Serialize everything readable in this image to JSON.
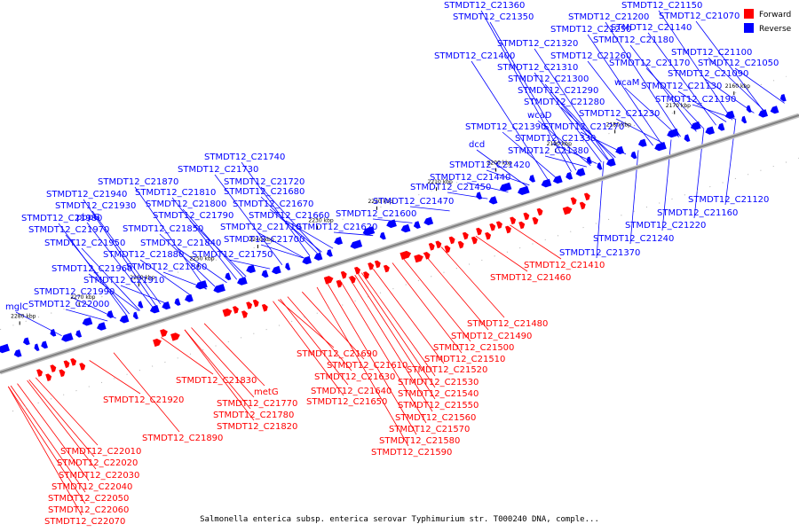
{
  "caption": "Salmonella enterica subsp. enterica serovar Typhimurium str. T000240 DNA, comple...",
  "legend": [
    {
      "label": "Forward",
      "color": "#ff0000"
    },
    {
      "label": "Reverse",
      "color": "#0000ff"
    }
  ],
  "colors": {
    "forward": "#ff0000",
    "reverse": "#0000ff",
    "axis": "#808080"
  },
  "ticks": [
    "2160 kbp",
    "2170 kbp",
    "2180 kbp",
    "2190 kbp",
    "2200 kbp",
    "2210 kbp",
    "2220 kbp",
    "2230 kbp",
    "2240 kbp",
    "2250 kbp",
    "2260 kbp",
    "2270 kbp",
    "2280 kbp"
  ],
  "reverse_labels": [
    "STMDT12_C21360",
    "STMDT12_C21150",
    "STMDT12_C21350",
    "STMDT12_C21200",
    "STMDT12_C21070",
    "STMDT12_C21250",
    "STMDT12_C21140",
    "STMDT12_C21320",
    "STMDT12_C21180",
    "STMDT12_C21400",
    "STMDT12_C21260",
    "STMDT12_C21100",
    "STMDT12_C21170",
    "STMDT12_C21050",
    "STMDT12_C21310",
    "STMDT12_C21090",
    "STMDT12_C21300",
    "wcaM",
    "STMDT12_C21130",
    "STMDT12_C21290",
    "STMDT12_C21190",
    "STMDT12_C21280",
    "wcaD",
    "STMDT12_C21230",
    "STMDT12_C21390",
    "STMDT12_C21270",
    "STMDT12_C21330",
    "dcd",
    "STMDT12_C21380",
    "STMDT12_C21740",
    "STMDT12_C21420",
    "STMDT12_C21730",
    "STMDT12_C21440",
    "STMDT12_C21870",
    "STMDT12_C21720",
    "STMDT12_C21450",
    "STMDT12_C21940",
    "STMDT12_C21810",
    "STMDT12_C21680",
    "STMDT12_C21120",
    "STMDT12_C21930",
    "STMDT12_C21800",
    "STMDT12_C21670",
    "STMDT12_C21470",
    "STMDT12_C21160",
    "STMDT12_C21980",
    "pbpG",
    "STMDT12_C21790",
    "STMDT12_C21660",
    "STMDT12_C21600",
    "STMDT12_C21220",
    "STMDT12_C21970",
    "STMDT12_C21850",
    "STMDT12_C21710",
    "STMDT12_C21620",
    "STMDT12_C21240",
    "STMDT12_C21950",
    "STMDT12_C21840",
    "STMDT12_C21700",
    "STMDT12_C21880",
    "STMDT12_C21750",
    "STMDT12_C21370",
    "STMDT12_C21960",
    "STMDT12_C21860",
    "STMDT12_C21910",
    "STMDT12_C21990",
    "mglC",
    "STMDT12_C22000"
  ],
  "forward_labels": [
    "STMDT12_C21410",
    "STMDT12_C21460",
    "STMDT12_C21480",
    "STMDT12_C21490",
    "STMDT12_C21500",
    "STMDT12_C21690",
    "STMDT12_C21510",
    "STMDT12_C21610",
    "STMDT12_C21520",
    "STMDT12_C21630",
    "STMDT12_C21530",
    "STMDT12_C21830",
    "STMDT12_C21640",
    "metG",
    "STMDT12_C21540",
    "STMDT12_C21920",
    "STMDT12_C21650",
    "STMDT12_C21770",
    "STMDT12_C21550",
    "STMDT12_C21780",
    "STMDT12_C21560",
    "STMDT12_C21820",
    "STMDT12_C21570",
    "STMDT12_C21890",
    "STMDT12_C21580",
    "STMDT12_C22010",
    "STMDT12_C21590",
    "STMDT12_C22020",
    "STMDT12_C22030",
    "STMDT12_C22040",
    "STMDT12_C22050",
    "STMDT12_C22060",
    "STMDT12_C22070"
  ]
}
